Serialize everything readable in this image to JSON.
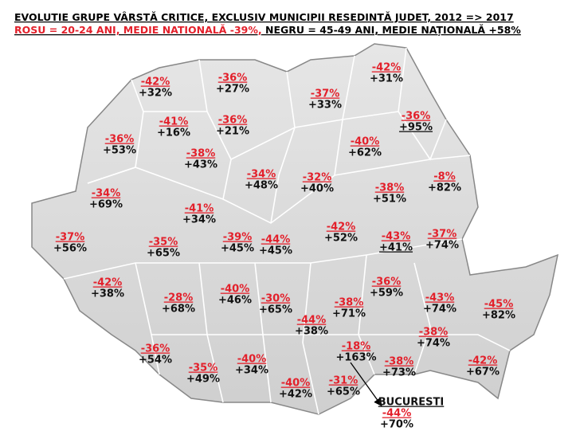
{
  "header": {
    "title": "EVOLUTIE GRUPE VÂRSTĂ CRITICE, EXCLUSIV MUNICIPII RESEDINTĂ JUDET, 2012 => 2017",
    "legend_red": "ROSU = 20-24 ANI, MEDIE NATIONALĂ -39%,",
    "legend_black": " NEGRU = 45-49 ANI, MEDIE NAȚIONALĂ +58%"
  },
  "counties": [
    {
      "red": "-42%",
      "black": "+31%"
    },
    {
      "red": "-42%",
      "black": "+32%"
    },
    {
      "red": "-36%",
      "black": "+27%"
    },
    {
      "red": "-37%",
      "black": "+33%"
    },
    {
      "red": "-41%",
      "black": "+16%"
    },
    {
      "red": "-36%",
      "black": "+21%"
    },
    {
      "red": "-36%",
      "black": "+95%"
    },
    {
      "red": "-36%",
      "black": "+53%"
    },
    {
      "red": "-40%",
      "black": "+62%"
    },
    {
      "red": "-38%",
      "black": "+43%"
    },
    {
      "red": "-34%",
      "black": "+48%"
    },
    {
      "red": "-32%",
      "black": "+40%"
    },
    {
      "red": "-8%",
      "black": "+82%"
    },
    {
      "red": "-38%",
      "black": "+51%"
    },
    {
      "red": "-34%",
      "black": "+69%"
    },
    {
      "red": "-41%",
      "black": "+34%"
    },
    {
      "red": "-42%",
      "black": "+52%"
    },
    {
      "red": "-37%",
      "black": "+56%"
    },
    {
      "red": "-35%",
      "black": "+65%"
    },
    {
      "red": "-39%",
      "black": "+45%"
    },
    {
      "red": "-44%",
      "black": "+45%"
    },
    {
      "red": "-43%",
      "black": "+41%"
    },
    {
      "red": "-37%",
      "black": "+74%"
    },
    {
      "red": "-42%",
      "black": "+38%"
    },
    {
      "red": "-36%",
      "black": "+59%"
    },
    {
      "red": "-28%",
      "black": "+68%"
    },
    {
      "red": "-40%",
      "black": "+46%"
    },
    {
      "red": "-30%",
      "black": "+65%"
    },
    {
      "red": "-43%",
      "black": "+74%"
    },
    {
      "red": "-45%",
      "black": "+82%"
    },
    {
      "red": "-38%",
      "black": "+71%"
    },
    {
      "red": "-44%",
      "black": "+38%"
    },
    {
      "red": "-38%",
      "black": "+74%"
    },
    {
      "red": "-36%",
      "black": "+54%"
    },
    {
      "red": "-18%",
      "black": "+163%"
    },
    {
      "red": "-38%",
      "black": "+73%"
    },
    {
      "red": "-42%",
      "black": "+67%"
    },
    {
      "red": "-40%",
      "black": "+34%"
    },
    {
      "red": "-35%",
      "black": "+49%"
    },
    {
      "red": "-40%",
      "black": "+42%"
    },
    {
      "red": "-31%",
      "black": "+65%"
    }
  ],
  "bucuresti": {
    "name": "BUCURESTI",
    "red": "-44%",
    "black": "+70%"
  }
}
